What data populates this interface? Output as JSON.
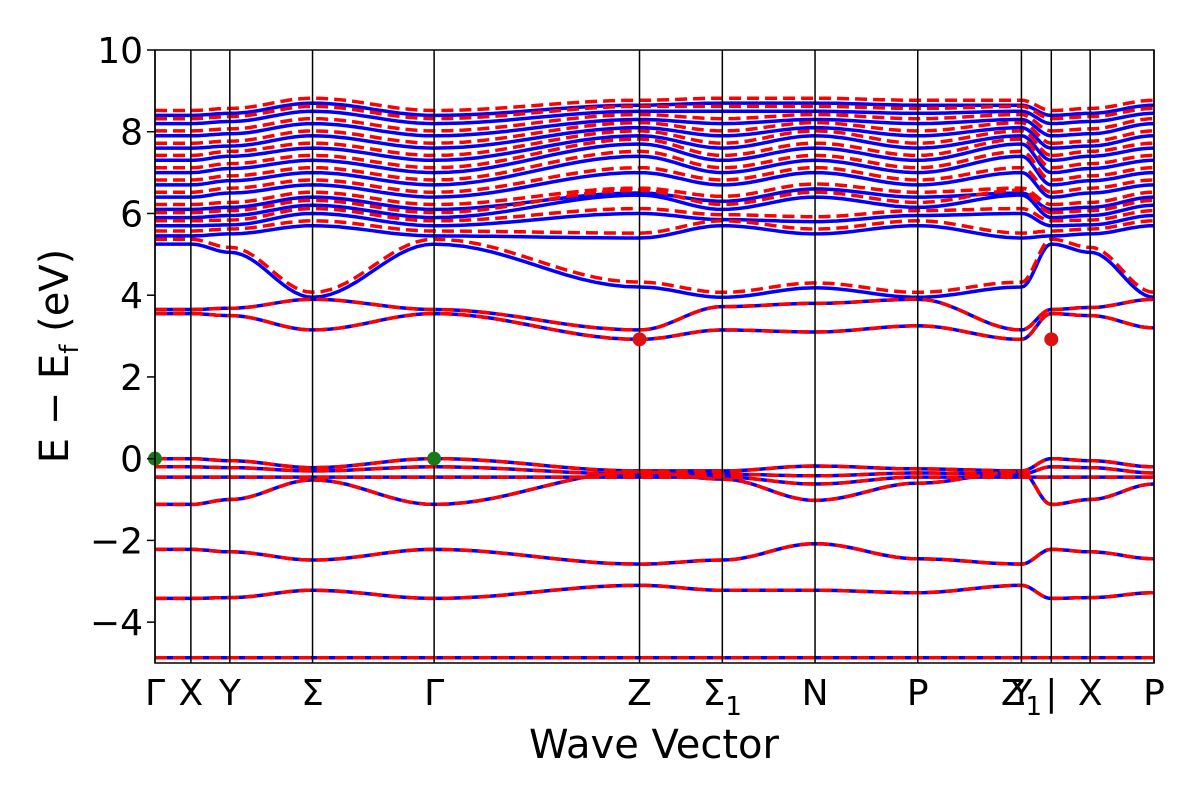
{
  "chart_data": {
    "type": "line",
    "xlabel": "Wave Vector",
    "ylabel": "E − E",
    "ylabel_subscript": "f",
    "ylabel_unit": " (eV)",
    "ylim": [
      -5,
      10
    ],
    "yticks": [
      {
        "value": 10,
        "label": "10"
      },
      {
        "value": 8,
        "label": "8"
      },
      {
        "value": 6,
        "label": "6"
      },
      {
        "value": 4,
        "label": "4"
      },
      {
        "value": 2,
        "label": "2"
      },
      {
        "value": 0,
        "label": "0"
      },
      {
        "value": -2,
        "label": "−2"
      },
      {
        "value": -4,
        "label": "−4"
      }
    ],
    "kpath": [
      {
        "pos": 0.0,
        "label": "Γ",
        "sub": ""
      },
      {
        "pos": 0.0359,
        "label": "X",
        "sub": ""
      },
      {
        "pos": 0.0749,
        "label": "Y",
        "sub": ""
      },
      {
        "pos": 0.1577,
        "label": "Σ",
        "sub": ""
      },
      {
        "pos": 0.2794,
        "label": "Γ",
        "sub": ""
      },
      {
        "pos": 0.485,
        "label": "Z",
        "sub": ""
      },
      {
        "pos": 0.5679,
        "label": "Σ",
        "sub": "1"
      },
      {
        "pos": 0.6607,
        "label": "N",
        "sub": ""
      },
      {
        "pos": 0.7635,
        "label": "P",
        "sub": ""
      },
      {
        "pos": 0.8673,
        "label": "Y",
        "sub": ""
      },
      {
        "pos": 0.8673,
        "label": "Z",
        "sub": "1"
      },
      {
        "pos": 0.8972,
        "label": "|",
        "sub": ""
      },
      {
        "pos": 0.9361,
        "label": "X",
        "sub": ""
      },
      {
        "pos": 1.0,
        "label": "P",
        "sub": ""
      }
    ],
    "path_break": 0.8972,
    "series": [
      {
        "color": "#0000ff",
        "dash": "solid"
      },
      {
        "color": "#ff0000",
        "dash": "dashed"
      }
    ],
    "band_nodes_x": [
      0.0,
      0.0359,
      0.0749,
      0.1577,
      0.2794,
      0.485,
      0.5679,
      0.6607,
      0.7635,
      0.8673,
      0.8972,
      0.9361,
      1.0
    ],
    "bands": [
      [
        -4.87,
        -4.87,
        -4.87,
        -4.87,
        -4.87,
        -4.87,
        -4.87,
        -4.87,
        -4.87,
        -4.87,
        -4.87,
        -4.87,
        -4.87
      ],
      [
        -3.42,
        -3.42,
        -3.4,
        -3.22,
        -3.42,
        -3.1,
        -3.22,
        -3.22,
        -3.28,
        -3.1,
        -3.42,
        -3.4,
        -3.28
      ],
      [
        -2.22,
        -2.22,
        -2.28,
        -2.48,
        -2.22,
        -2.58,
        -2.48,
        -2.08,
        -2.45,
        -2.58,
        -2.22,
        -2.28,
        -2.45
      ],
      [
        -1.12,
        -1.12,
        -1.0,
        -0.52,
        -1.12,
        -0.32,
        -0.5,
        -1.02,
        -0.6,
        -0.32,
        -1.12,
        -1.0,
        -0.62
      ],
      [
        -0.45,
        -0.45,
        -0.45,
        -0.45,
        -0.45,
        -0.45,
        -0.45,
        -0.62,
        -0.45,
        -0.45,
        -0.45,
        -0.45,
        -0.45
      ],
      [
        -0.2,
        -0.2,
        -0.22,
        -0.3,
        -0.2,
        -0.38,
        -0.38,
        -0.42,
        -0.35,
        -0.38,
        -0.2,
        -0.22,
        -0.35
      ],
      [
        0.0,
        0.0,
        -0.05,
        -0.22,
        0.0,
        -0.3,
        -0.3,
        -0.18,
        -0.25,
        -0.3,
        0.0,
        -0.05,
        -0.2
      ],
      [
        3.55,
        3.55,
        3.5,
        3.15,
        3.55,
        2.92,
        3.15,
        3.1,
        3.25,
        2.92,
        3.55,
        3.5,
        3.2
      ],
      [
        3.65,
        3.65,
        3.68,
        3.9,
        3.65,
        3.15,
        3.72,
        3.8,
        3.9,
        3.15,
        3.65,
        3.7,
        3.9
      ],
      [
        5.25,
        5.25,
        5.05,
        3.95,
        5.25,
        4.2,
        3.95,
        4.18,
        3.95,
        4.2,
        5.25,
        5.05,
        3.95
      ],
      [
        5.45,
        5.45,
        5.5,
        5.7,
        5.45,
        5.4,
        5.7,
        5.5,
        5.7,
        5.4,
        5.45,
        5.5,
        5.7
      ],
      [
        5.7,
        5.7,
        5.72,
        6.0,
        5.7,
        6.0,
        5.85,
        5.8,
        5.95,
        6.0,
        5.7,
        5.72,
        5.95
      ],
      [
        5.9,
        5.9,
        5.95,
        6.2,
        5.9,
        6.45,
        6.1,
        6.4,
        6.15,
        6.45,
        5.9,
        5.95,
        6.2
      ],
      [
        6.1,
        6.1,
        6.15,
        6.4,
        6.1,
        6.5,
        6.3,
        6.6,
        6.4,
        6.5,
        6.1,
        6.15,
        6.4
      ],
      [
        6.4,
        6.4,
        6.5,
        6.7,
        6.4,
        7.0,
        6.7,
        7.0,
        6.7,
        7.0,
        6.4,
        6.5,
        6.7
      ],
      [
        6.7,
        6.7,
        6.8,
        7.0,
        6.7,
        7.4,
        7.0,
        7.3,
        7.0,
        7.4,
        6.7,
        6.8,
        7.0
      ],
      [
        7.0,
        7.0,
        7.1,
        7.3,
        7.0,
        7.7,
        7.3,
        7.6,
        7.3,
        7.7,
        7.0,
        7.1,
        7.3
      ],
      [
        7.3,
        7.3,
        7.4,
        7.6,
        7.3,
        7.9,
        7.6,
        7.9,
        7.6,
        7.9,
        7.3,
        7.4,
        7.6
      ],
      [
        7.6,
        7.6,
        7.65,
        7.9,
        7.6,
        8.1,
        7.9,
        8.1,
        7.9,
        8.1,
        7.6,
        7.65,
        7.9
      ],
      [
        7.9,
        7.9,
        7.95,
        8.2,
        7.9,
        8.3,
        8.2,
        8.3,
        8.2,
        8.3,
        7.9,
        7.95,
        8.2
      ],
      [
        8.2,
        8.2,
        8.25,
        8.5,
        8.2,
        8.5,
        8.5,
        8.5,
        8.45,
        8.5,
        8.2,
        8.25,
        8.45
      ],
      [
        8.4,
        8.4,
        8.45,
        8.7,
        8.4,
        8.65,
        8.7,
        8.7,
        8.65,
        8.65,
        8.4,
        8.45,
        8.65
      ]
    ],
    "markers": [
      {
        "x": 0.0,
        "y": 0.0,
        "color": "#1a7a1a"
      },
      {
        "x": 0.2794,
        "y": 0.0,
        "color": "#1a7a1a"
      },
      {
        "x": 0.485,
        "y": 2.92,
        "color": "#dd1111"
      },
      {
        "x": 0.8972,
        "y": 2.92,
        "color": "#dd1111"
      }
    ]
  }
}
